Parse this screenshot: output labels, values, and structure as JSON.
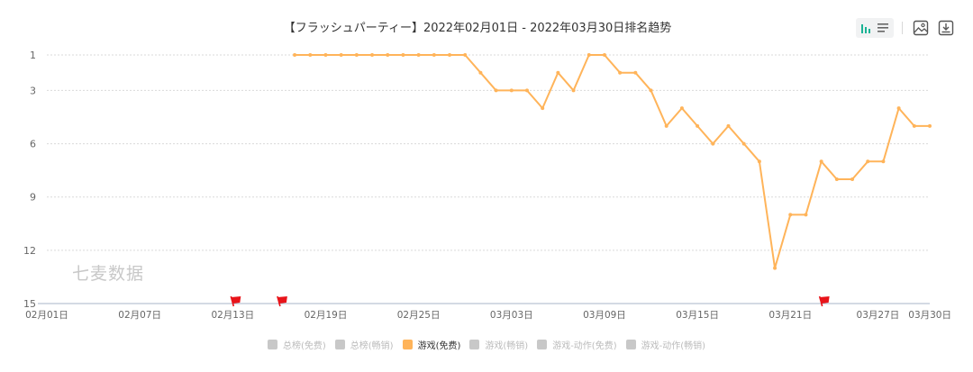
{
  "header": {
    "title": "【フラッシュパーティー】2022年02月01日 - 2022年03月30日排名趋势"
  },
  "toolbar": {
    "buttons": [
      {
        "name": "bar-chart-toggle",
        "icon": "bar-chart-icon",
        "active": true
      },
      {
        "name": "list-toggle",
        "icon": "list-icon",
        "active": false
      },
      {
        "name": "save-image",
        "icon": "image-icon"
      },
      {
        "name": "download",
        "icon": "download-icon"
      }
    ]
  },
  "watermark": "七麦数据",
  "legend": {
    "items": [
      {
        "label": "总榜(免费)",
        "active": false
      },
      {
        "label": "总榜(畅销)",
        "active": false
      },
      {
        "label": "游戏(免费)",
        "active": true
      },
      {
        "label": "游戏(畅销)",
        "active": false
      },
      {
        "label": "游戏-动作(免费)",
        "active": false
      },
      {
        "label": "游戏-动作(畅销)",
        "active": false
      }
    ]
  },
  "colors": {
    "series": "#ffb45a",
    "flag": "#e8141a",
    "grid": "#d9d9d9",
    "axis": "#a8b4c8",
    "tick_text": "#666666"
  },
  "chart_data": {
    "type": "line",
    "title": "【フラッシュパーティー】2022年02月01日 - 2022年03月30日排名趋势",
    "xlabel": "",
    "ylabel": "",
    "y_inverted": true,
    "ylim": [
      1,
      15
    ],
    "yticks": [
      1,
      3,
      6,
      9,
      12,
      15
    ],
    "xticks": [
      "02月01日",
      "02月07日",
      "02月13日",
      "02月19日",
      "02月25日",
      "03月03日",
      "03月09日",
      "03月15日",
      "03月21日",
      "03月27日",
      "03月30日"
    ],
    "grid": true,
    "legend_position": "bottom",
    "x_start": "02月01日",
    "x_days": 58,
    "series": [
      {
        "name": "游戏(免费)",
        "start_index": 16,
        "x": [
          "02月17日",
          "02月18日",
          "02月19日",
          "02月20日",
          "02月21日",
          "02月22日",
          "02月23日",
          "02月24日",
          "02月25日",
          "02月26日",
          "02月27日",
          "02月28日",
          "03月01日",
          "03月02日",
          "03月03日",
          "03月04日",
          "03月05日",
          "03月06日",
          "03月07日",
          "03月08日",
          "03月09日",
          "03月10日",
          "03月11日",
          "03月12日",
          "03月13日",
          "03月14日",
          "03月15日",
          "03月16日",
          "03月17日",
          "03月18日",
          "03月19日",
          "03月20日",
          "03月21日",
          "03月22日",
          "03月23日",
          "03月24日",
          "03月25日",
          "03月26日",
          "03月27日",
          "03月28日",
          "03月29日",
          "03月30日"
        ],
        "values": [
          1,
          1,
          1,
          1,
          1,
          1,
          1,
          1,
          1,
          1,
          1,
          1,
          2,
          3,
          3,
          3,
          4,
          2,
          3,
          1,
          1,
          2,
          2,
          3,
          5,
          4,
          5,
          6,
          5,
          6,
          7,
          13,
          10,
          10,
          7,
          8,
          8,
          7,
          7,
          4,
          5,
          5
        ]
      }
    ],
    "annotations": [
      {
        "type": "flag",
        "date": "02月13日",
        "index": 12
      },
      {
        "type": "flag",
        "date": "02月16日",
        "index": 15
      },
      {
        "type": "flag",
        "date": "03月23日",
        "index": 50
      }
    ]
  }
}
